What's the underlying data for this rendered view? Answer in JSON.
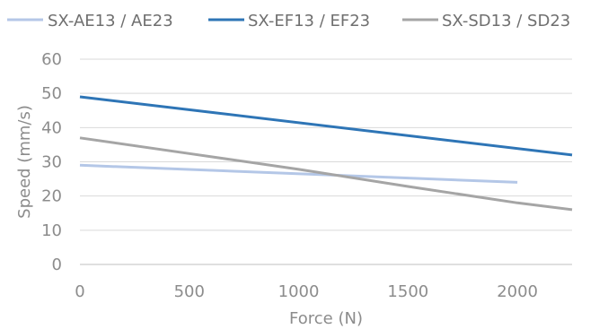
{
  "chart_data": {
    "type": "line",
    "title": "",
    "xlabel": "Force (N)",
    "ylabel": "Speed (mm/s)",
    "xlim": [
      0,
      2250
    ],
    "ylim": [
      0,
      60
    ],
    "x_ticks": [
      "0",
      "500",
      "1000",
      "1500",
      "2000"
    ],
    "y_ticks": [
      "0",
      "10",
      "20",
      "30",
      "40",
      "50",
      "60"
    ],
    "grid": "horizontal",
    "legend_position": "top",
    "series": [
      {
        "name": "SX-AE13 / AE23",
        "color": "#b4c7e7",
        "points": [
          [
            0,
            29
          ],
          [
            2000,
            24
          ]
        ]
      },
      {
        "name": "SX-EF13 / EF23",
        "color": "#2e75b6",
        "points": [
          [
            0,
            49
          ],
          [
            2250,
            32
          ]
        ]
      },
      {
        "name": "SX-SD13 / SD23",
        "color": "#a5a5a5",
        "points": [
          [
            0,
            37
          ],
          [
            500,
            32.4
          ],
          [
            1000,
            27.8
          ],
          [
            1500,
            22.8
          ],
          [
            2000,
            18
          ],
          [
            2250,
            16
          ]
        ]
      }
    ]
  }
}
